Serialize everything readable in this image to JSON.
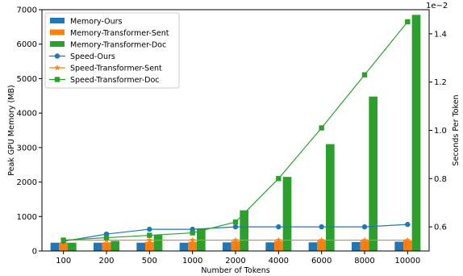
{
  "chart_data": {
    "type": "bar",
    "categories": [
      "100",
      "200",
      "500",
      "1000",
      "2000",
      "4000",
      "6000",
      "8000",
      "10000"
    ],
    "xlabel": "Number of Tokens",
    "ylabel": "Peak GPU Memory (MB)",
    "y2label": "Seconds Per Token",
    "y2_offset_text": "1e−2",
    "ylim": [
      0,
      7000
    ],
    "y2lim": [
      0.5,
      1.5
    ],
    "yticks": [
      0,
      1000,
      2000,
      3000,
      4000,
      5000,
      6000,
      7000
    ],
    "y2ticks": [
      0.6,
      0.8,
      1.0,
      1.2,
      1.4
    ],
    "y2ticklabels": [
      "0.6",
      "0.8",
      "1.0",
      "1.2",
      "1.4"
    ],
    "legend_position": "top-left",
    "grid": false,
    "bar_series": [
      {
        "name": "Memory-Ours",
        "color": "#1f77b4",
        "values": [
          240,
          240,
          240,
          240,
          250,
          250,
          250,
          260,
          270
        ]
      },
      {
        "name": "Memory-Transformer-Sent",
        "color": "#ff7f0e",
        "values": [
          250,
          250,
          260,
          270,
          290,
          290,
          300,
          300,
          310
        ]
      },
      {
        "name": "Memory-Transformer-Doc",
        "color": "#2ca02c",
        "values": [
          240,
          290,
          460,
          650,
          1180,
          2150,
          3100,
          4480,
          6850
        ]
      }
    ],
    "line_series": [
      {
        "name": "Speed-Ours",
        "color": "#1f77b4",
        "marker": "circle",
        "values": [
          0.54,
          0.57,
          0.59,
          0.59,
          0.6,
          0.6,
          0.6,
          0.6,
          0.61
        ]
      },
      {
        "name": "Speed-Transformer-Sent",
        "color": "#ff7f0e",
        "marker": "star",
        "values": [
          0.545,
          0.545,
          0.545,
          0.545,
          0.545,
          0.545,
          0.545,
          0.545,
          0.545
        ]
      },
      {
        "name": "Speed-Transformer-Doc",
        "color": "#2ca02c",
        "marker": "square",
        "values": [
          0.545,
          0.555,
          0.565,
          0.575,
          0.62,
          0.8,
          1.01,
          1.23,
          1.45
        ]
      }
    ]
  }
}
